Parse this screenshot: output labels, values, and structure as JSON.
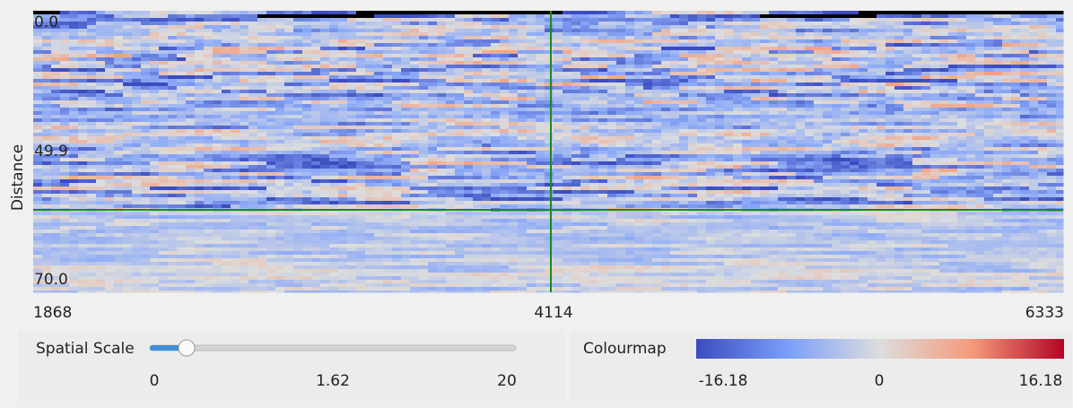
{
  "plot": {
    "y_axis_label": "Distance",
    "y_labels": [
      "0.0",
      "49.9",
      "70.0"
    ],
    "x_labels": [
      "1868",
      "4114",
      "6333"
    ]
  },
  "controls": {
    "spatial_scale": {
      "label": "Spatial Scale",
      "min_label": "0",
      "value_label": "1.62",
      "max_label": "20"
    },
    "colourmap": {
      "label": "Colourmap",
      "min_label": "-16.18",
      "mid_label": "0",
      "max_label": "16.18"
    }
  }
}
